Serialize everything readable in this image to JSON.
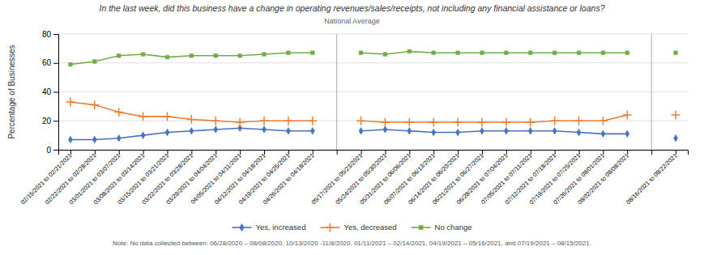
{
  "chart_data": {
    "type": "line",
    "title": "In the last week, did this business have a change in operating revenues/sales/receipts, not including any financial assistance or loans?",
    "subtitle": "National Average",
    "y_label": "Percentage of Businesses",
    "annotation": "Note: No data collected between: 06/28/2020 – 08/08/2020, 10/13/2020 -11/8/2020, 01/11/2021 – 02/14/2021, 04/19/2021 – 05/16/2021, and 07/19/2021 – 08/15/2021.",
    "categories": [
      "02/15/2021 to 02/21/2021",
      "02/22/2021 to 02/28/2021",
      "03/01/2021 to 03/07/2021",
      "03/08/2021 to 03/14/2021",
      "03/15/2021 to 03/21/2021",
      "03/22/2021 to 03/28/2021",
      "03/29/2021 to 04/04/2021",
      "04/05/2021 to 04/11/2021",
      "04/12/2021 to 04/18/2021",
      "04/19/2021 to 04/25/2021",
      "04/26/2021 to 04/18/2021",
      null,
      "05/17/2021 to 05/23/2021",
      "05/24/2021 to 05/30/2021",
      "05/31/2021 to 06/06/2021",
      "06/07/2021 to 06/13/2021",
      "06/14/2021 to 06/20/2021",
      "06/21/2021 to 06/27/2021",
      "06/28/2021 to 07/04/2021",
      "07/05/2021 to 07/11/2021",
      "07/12/2021 to 07/18/2021",
      "07/19/2021 to 07/25/2021",
      "07/26/2021 to 08/01/2021",
      "08/02/2021 to 08/08/2021",
      null,
      "08/16/2021 to 08/22/2021"
    ],
    "series": [
      {
        "name": "Yes, increased",
        "color": "#4472c4",
        "marker": "diamond",
        "values": [
          7,
          7,
          8,
          10,
          12,
          13,
          14,
          15,
          14,
          13,
          13,
          null,
          13,
          14,
          13,
          12,
          12,
          13,
          13,
          13,
          13,
          12,
          11,
          11,
          null,
          8
        ]
      },
      {
        "name": "Yes, decreased",
        "color": "#ed7d31",
        "marker": "plus",
        "values": [
          33,
          31,
          26,
          23,
          23,
          21,
          20,
          19,
          20,
          20,
          20,
          null,
          20,
          19,
          19,
          19,
          19,
          19,
          19,
          19,
          20,
          20,
          20,
          24,
          null,
          24
        ]
      },
      {
        "name": "No change",
        "color": "#70ad47",
        "marker": "square",
        "values": [
          59,
          61,
          65,
          66,
          64,
          65,
          65,
          65,
          66,
          67,
          67,
          null,
          67,
          66,
          68,
          67,
          67,
          67,
          67,
          67,
          67,
          67,
          67,
          67,
          null,
          67
        ]
      }
    ],
    "ylim": [
      0,
      80
    ],
    "yticks": [
      0,
      20,
      40,
      60,
      80
    ],
    "grid": true,
    "legend": "bottom"
  }
}
